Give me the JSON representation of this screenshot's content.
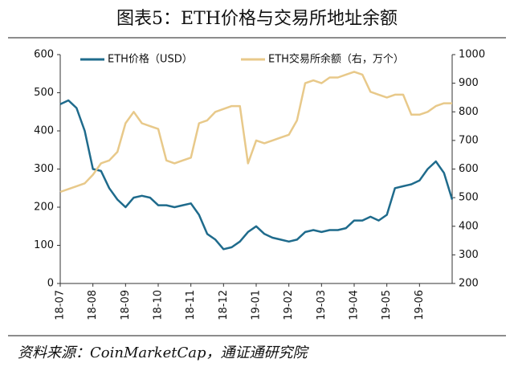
{
  "chart_data": {
    "type": "line",
    "title": "图表5：ETH价格与交易所地址余额",
    "source": "资料来源：CoinMarketCap，通证通研究院",
    "categories": [
      "18-07",
      null,
      null,
      null,
      "18-08",
      null,
      null,
      null,
      "18-09",
      null,
      null,
      null,
      "18-10",
      null,
      null,
      null,
      "18-11",
      null,
      null,
      null,
      "18-12",
      null,
      null,
      null,
      "19-01",
      null,
      null,
      null,
      "19-02",
      null,
      null,
      null,
      "19-03",
      null,
      null,
      null,
      "19-04",
      null,
      null,
      null,
      "19-05",
      null,
      null,
      null,
      "19-06",
      null,
      null,
      null,
      null
    ],
    "series": [
      {
        "name": "ETH价格（USD）",
        "color": "#1f6b8c",
        "axis": "y",
        "values": [
          470,
          480,
          460,
          400,
          300,
          295,
          250,
          220,
          200,
          225,
          230,
          225,
          205,
          205,
          200,
          205,
          210,
          180,
          130,
          115,
          90,
          95,
          110,
          135,
          150,
          130,
          120,
          115,
          110,
          115,
          135,
          140,
          135,
          140,
          140,
          145,
          165,
          165,
          175,
          165,
          180,
          250,
          255,
          260,
          270,
          300,
          320,
          290,
          220
        ]
      },
      {
        "name": "ETH交易所余额（右，万个）",
        "color": "#e8c98a",
        "axis": "y2",
        "values": [
          520,
          530,
          540,
          550,
          580,
          620,
          630,
          660,
          760,
          800,
          760,
          750,
          740,
          630,
          620,
          630,
          640,
          760,
          770,
          800,
          810,
          820,
          820,
          620,
          700,
          690,
          700,
          710,
          720,
          770,
          900,
          910,
          900,
          920,
          920,
          930,
          940,
          930,
          870,
          860,
          850,
          860,
          860,
          790,
          790,
          800,
          820,
          830,
          830
        ]
      }
    ],
    "ylim": [
      0,
      600
    ],
    "yticks": [
      0,
      100,
      200,
      300,
      400,
      500,
      600
    ],
    "y2lim": [
      200,
      1000
    ],
    "y2ticks": [
      200,
      300,
      400,
      500,
      600,
      700,
      800,
      900,
      1000
    ],
    "legend": "top"
  }
}
